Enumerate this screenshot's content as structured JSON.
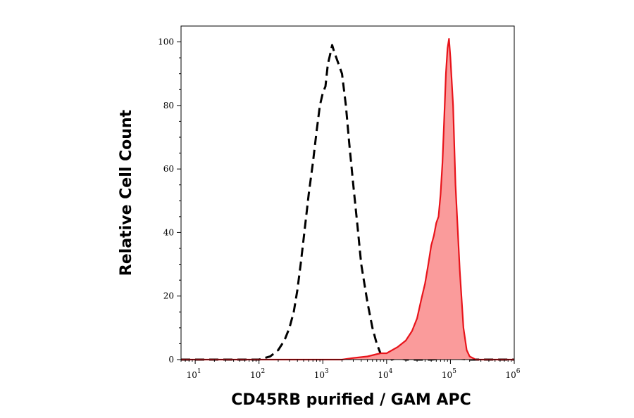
{
  "chart_data": {
    "type": "area",
    "xlabel": "CD45RB purified / GAM APC",
    "ylabel": "Relative Cell Count",
    "x_scale": "log10",
    "xlim": [
      6,
      1000000
    ],
    "ylim": [
      0,
      105
    ],
    "x_ticks": [
      {
        "value": 10,
        "base": "10",
        "exp": "1"
      },
      {
        "value": 100,
        "base": "10",
        "exp": "2"
      },
      {
        "value": 1000,
        "base": "10",
        "exp": "3"
      },
      {
        "value": 10000,
        "base": "10",
        "exp": "4"
      },
      {
        "value": 100000,
        "base": "10",
        "exp": "5"
      },
      {
        "value": 1000000,
        "base": "10",
        "exp": "6"
      }
    ],
    "y_ticks": [
      {
        "value": 0,
        "label": "0"
      },
      {
        "value": 20,
        "label": "20"
      },
      {
        "value": 40,
        "label": "40"
      },
      {
        "value": 60,
        "label": "60"
      },
      {
        "value": 80,
        "label": "80"
      },
      {
        "value": 100,
        "label": "100"
      }
    ],
    "grid": false,
    "legend": "none",
    "series": [
      {
        "style": "dashed",
        "color": "#000000",
        "fill": "none",
        "x": [
          6,
          100,
          150,
          200,
          250,
          300,
          350,
          400,
          450,
          500,
          600,
          700,
          800,
          900,
          1000,
          1100,
          1200,
          1300,
          1400,
          1500,
          1700,
          2000,
          2300,
          2600,
          3000,
          3500,
          4000,
          5000,
          6000,
          7000,
          8000,
          9000,
          10000,
          11000,
          12000,
          15000,
          20000,
          50000,
          100000,
          200000,
          1000000
        ],
        "y": [
          0,
          0,
          1,
          3,
          6,
          10,
          15,
          22,
          30,
          38,
          52,
          62,
          72,
          80,
          84,
          86,
          93,
          96,
          99,
          97,
          94,
          90,
          80,
          68,
          55,
          42,
          30,
          18,
          10,
          5,
          2,
          1,
          0.5,
          0.5,
          0,
          0.5,
          0,
          0,
          0.5,
          0,
          0
        ]
      },
      {
        "style": "solid",
        "color": "#e8141b",
        "fill": "#fa9b9b",
        "x": [
          6,
          1000,
          2000,
          3000,
          5000,
          8000,
          10000,
          15000,
          20000,
          25000,
          30000,
          35000,
          40000,
          45000,
          50000,
          55000,
          60000,
          65000,
          70000,
          75000,
          80000,
          85000,
          90000,
          95000,
          100000,
          110000,
          120000,
          140000,
          160000,
          180000,
          200000,
          250000,
          300000,
          1000000
        ],
        "y": [
          0,
          0,
          0,
          0.5,
          1,
          2,
          2,
          4,
          6,
          9,
          13,
          19,
          24,
          30,
          36,
          39,
          43,
          45,
          52,
          62,
          76,
          90,
          98,
          101,
          95,
          80,
          55,
          28,
          10,
          3,
          1,
          0,
          0,
          0
        ]
      }
    ]
  }
}
